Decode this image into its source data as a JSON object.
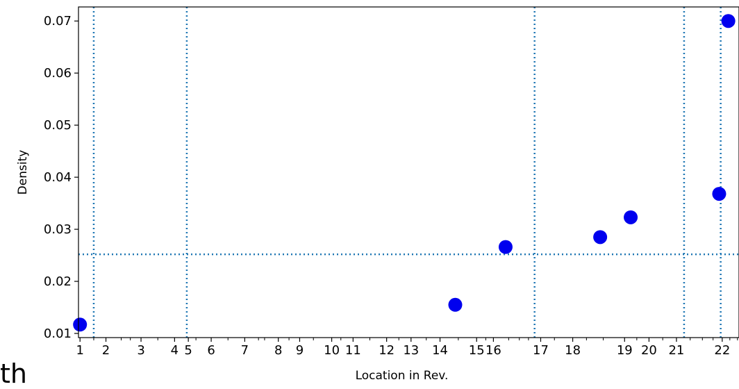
{
  "chart_data": {
    "type": "scatter",
    "xlabel": "Location in Rev.",
    "ylabel": "Density",
    "xlim": [
      0.95,
      22.6
    ],
    "ylim": [
      0.0092,
      0.0727
    ],
    "x_ticks": [
      {
        "value": 1.0,
        "label": "1"
      },
      {
        "value": 1.85,
        "label": "2"
      },
      {
        "value": 3.0,
        "label": "3"
      },
      {
        "value": 4.1,
        "label": "4"
      },
      {
        "value": 4.55,
        "label": "5"
      },
      {
        "value": 5.3,
        "label": "6"
      },
      {
        "value": 6.4,
        "label": "7"
      },
      {
        "value": 7.5,
        "label": "8"
      },
      {
        "value": 8.2,
        "label": "9"
      },
      {
        "value": 9.25,
        "label": "10"
      },
      {
        "value": 9.95,
        "label": "11"
      },
      {
        "value": 11.05,
        "label": "12"
      },
      {
        "value": 11.85,
        "label": "13"
      },
      {
        "value": 12.8,
        "label": "14"
      },
      {
        "value": 14.0,
        "label": "15"
      },
      {
        "value": 14.55,
        "label": "16"
      },
      {
        "value": 16.1,
        "label": "17"
      },
      {
        "value": 17.15,
        "label": "18"
      },
      {
        "value": 18.85,
        "label": "19"
      },
      {
        "value": 19.65,
        "label": "20"
      },
      {
        "value": 20.55,
        "label": "21"
      },
      {
        "value": 22.05,
        "label": "22"
      }
    ],
    "minor_x_ticks": [
      1.45,
      2.35,
      2.65,
      3.55,
      4.8,
      5.85,
      6.85,
      7.05,
      7.85,
      8.65,
      9.55,
      10.5,
      11.45,
      12.35,
      13.4,
      14.3,
      15.05,
      15.4,
      15.7,
      16.55,
      17.6,
      18.15,
      19.25,
      20.1,
      21.0,
      21.4,
      21.75,
      22.3,
      22.55
    ],
    "y_ticks": [
      0.01,
      0.02,
      0.03,
      0.04,
      0.05,
      0.06,
      0.07
    ],
    "y_tick_labels": [
      "0.01",
      "0.02",
      "0.03",
      "0.04",
      "0.05",
      "0.06",
      "0.07"
    ],
    "points": [
      {
        "x": 1.0,
        "y": 0.0117
      },
      {
        "x": 13.3,
        "y": 0.0155
      },
      {
        "x": 14.95,
        "y": 0.0266
      },
      {
        "x": 18.05,
        "y": 0.0285
      },
      {
        "x": 19.05,
        "y": 0.0323
      },
      {
        "x": 21.95,
        "y": 0.0368
      },
      {
        "x": 22.25,
        "y": 0.07
      }
    ],
    "vertical_lines": [
      1.45,
      4.5,
      15.9,
      20.8,
      22.0
    ],
    "horizontal_lines": [
      0.0252
    ],
    "colors": {
      "points": "#0000ee",
      "reference_lines": "#1f77b4",
      "axes": "#000000"
    },
    "grid": false
  },
  "stray_text": "th"
}
